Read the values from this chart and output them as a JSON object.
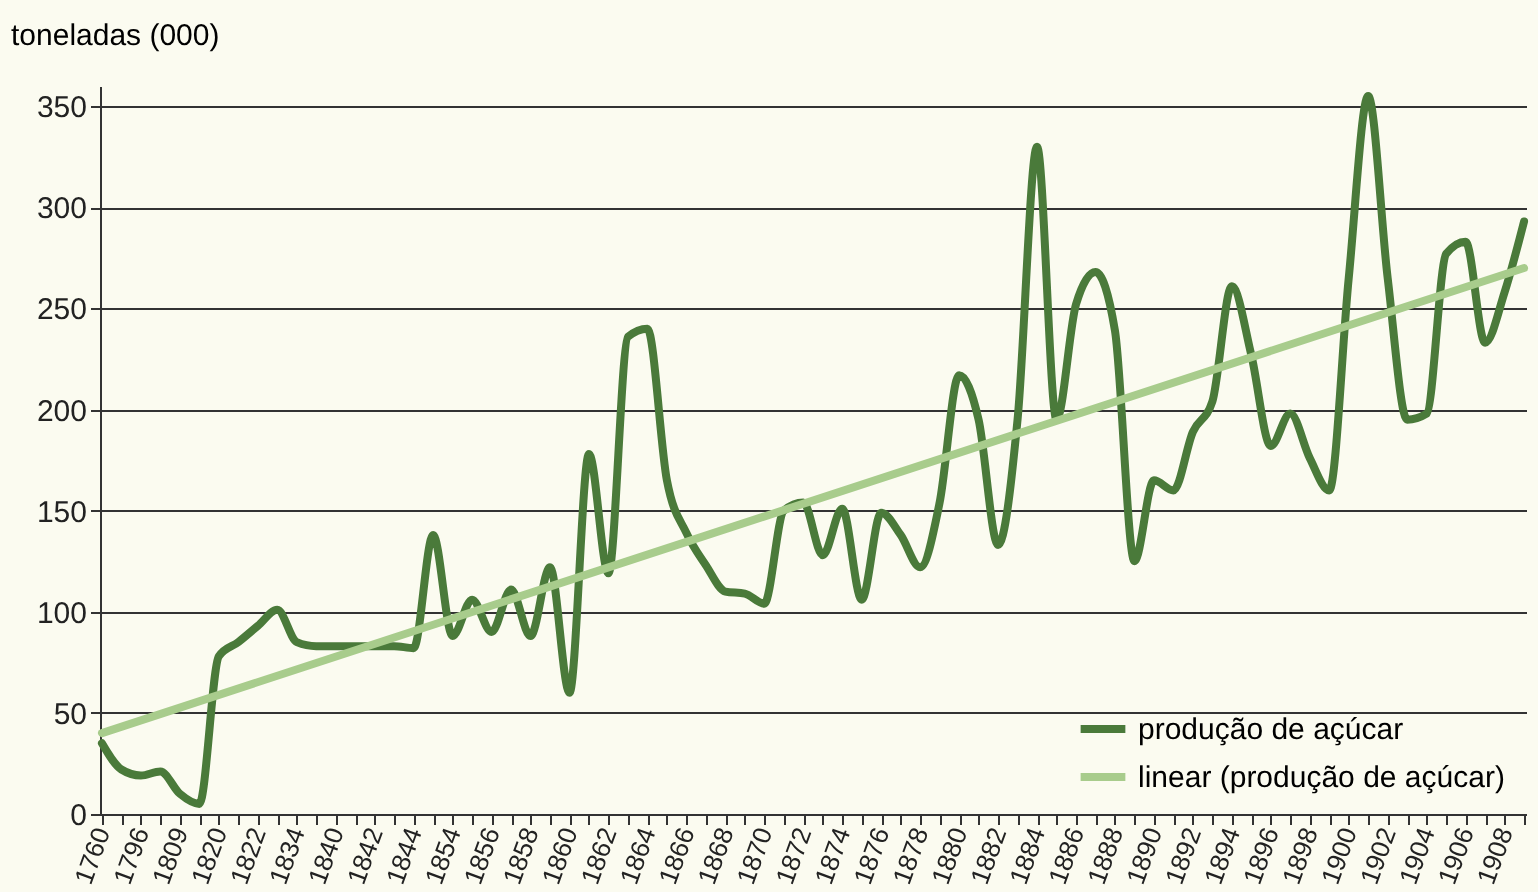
{
  "chart_data": {
    "type": "line",
    "ylabel": "toneladas (000)",
    "categories": [
      "1760",
      null,
      "1796",
      null,
      "1809",
      null,
      "1820",
      null,
      "1822",
      null,
      "1834",
      null,
      "1840",
      null,
      "1842",
      null,
      "1844",
      null,
      "1854",
      null,
      "1856",
      null,
      "1858",
      null,
      "1860",
      null,
      "1862",
      null,
      "1864",
      null,
      "1866",
      null,
      "1868",
      null,
      "1870",
      null,
      "1872",
      null,
      "1874",
      null,
      "1876",
      null,
      "1878",
      null,
      "1880",
      null,
      "1882",
      null,
      "1884",
      null,
      "1886",
      null,
      "1888",
      null,
      "1890",
      null,
      "1892",
      null,
      "1894",
      null,
      "1896",
      null,
      "1898",
      null,
      "1900",
      null,
      "1902",
      null,
      "1904",
      null,
      "1906",
      null,
      "1908",
      null
    ],
    "series": [
      {
        "name": "produção de açúcar",
        "color": "#4a7a3a",
        "values": [
          35,
          22,
          19,
          21,
          10,
          5,
          78,
          85,
          93,
          101,
          85,
          83,
          83,
          83,
          83,
          83,
          82,
          138,
          88,
          106,
          90,
          111,
          88,
          122,
          60,
          178,
          119,
          236,
          240,
          165,
          139,
          123,
          110,
          109,
          104,
          150,
          154,
          128,
          151,
          106,
          149,
          138,
          122,
          154,
          217,
          195,
          133,
          195,
          330,
          195,
          252,
          268,
          239,
          125,
          165,
          160,
          189,
          204,
          261,
          227,
          182,
          198,
          176,
          160,
          265,
          355,
          265,
          195,
          198,
          277,
          283,
          233,
          258,
          293
        ]
      },
      {
        "name": "linear (produção de açúcar)",
        "color": "#a8cc8c",
        "values": [
          40,
          null,
          null,
          null,
          null,
          null,
          null,
          null,
          null,
          null,
          null,
          null,
          null,
          null,
          null,
          null,
          null,
          null,
          null,
          null,
          null,
          null,
          null,
          null,
          null,
          null,
          null,
          null,
          null,
          null,
          null,
          null,
          null,
          null,
          null,
          null,
          null,
          null,
          null,
          null,
          null,
          null,
          null,
          null,
          null,
          null,
          null,
          null,
          null,
          null,
          null,
          null,
          null,
          null,
          null,
          null,
          null,
          null,
          null,
          null,
          null,
          null,
          null,
          null,
          null,
          null,
          null,
          null,
          null,
          null,
          null,
          null,
          null,
          270
        ]
      }
    ],
    "ylim": [
      0,
      360
    ],
    "yticks": [
      0,
      50,
      100,
      150,
      200,
      250,
      300,
      350
    ],
    "grid": "y",
    "legend": "bottom right",
    "marker": "none",
    "line_style": "solid"
  }
}
